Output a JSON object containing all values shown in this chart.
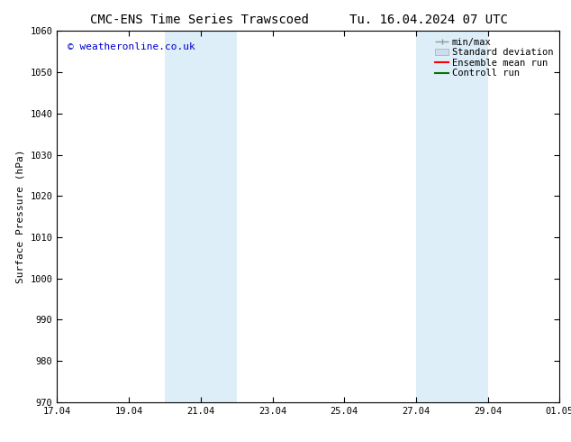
{
  "title_left": "CMC-ENS Time Series Trawscoed",
  "title_right": "Tu. 16.04.2024 07 UTC",
  "ylabel": "Surface Pressure (hPa)",
  "ylim": [
    970,
    1060
  ],
  "yticks": [
    970,
    980,
    990,
    1000,
    1010,
    1020,
    1030,
    1040,
    1050,
    1060
  ],
  "xlim_num": [
    0,
    14
  ],
  "xtick_positions": [
    0,
    2,
    4,
    6,
    8,
    10,
    12,
    14
  ],
  "xtick_labels": [
    "17.04",
    "19.04",
    "21.04",
    "23.04",
    "25.04",
    "27.04",
    "29.04",
    "01.05"
  ],
  "shaded_bands": [
    {
      "xmin": 3.0,
      "xmax": 5.0
    },
    {
      "xmin": 10.0,
      "xmax": 12.0
    }
  ],
  "shade_color": "#ddeef8",
  "background_color": "#ffffff",
  "watermark_text": "© weatheronline.co.uk",
  "watermark_color": "#0000cc",
  "watermark_fontsize": 8,
  "title_fontsize": 10,
  "axis_label_fontsize": 8,
  "tick_fontsize": 7.5,
  "legend_fontsize": 7.5,
  "minmax_color": "#999999",
  "stddev_color": "#ccddee",
  "ensemble_color": "#ff0000",
  "control_color": "#007700"
}
